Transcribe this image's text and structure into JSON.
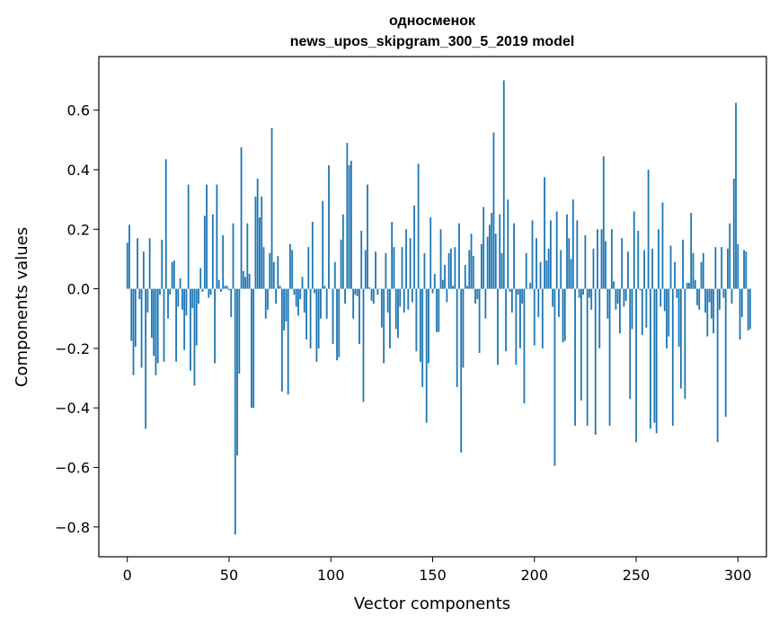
{
  "chart_data": {
    "type": "bar",
    "title": "односменок",
    "subtitle": "news_upos_skipgram_300_5_2019 model",
    "xlabel": "Vector components",
    "ylabel": "Components values",
    "xlim": [
      -14,
      314
    ],
    "ylim": [
      -0.9,
      0.78
    ],
    "xticks": [
      0,
      50,
      100,
      150,
      200,
      250,
      300
    ],
    "yticks": [
      -0.8,
      -0.6,
      -0.4,
      -0.2,
      0.0,
      0.2,
      0.4,
      0.6
    ],
    "ytick_labels": [
      "−0.8",
      "−0.6",
      "−0.4",
      "−0.2",
      "0.0",
      "0.2",
      "0.4",
      "0.6"
    ],
    "grid": false,
    "bar_color": "#1f77b4",
    "values": [
      0.155,
      0.215,
      -0.175,
      -0.29,
      -0.195,
      0.17,
      -0.035,
      -0.265,
      0.125,
      -0.47,
      -0.08,
      0.17,
      -0.165,
      -0.225,
      -0.29,
      -0.25,
      -0.02,
      0.165,
      -0.245,
      0.435,
      -0.1,
      -0.02,
      0.09,
      0.095,
      -0.245,
      -0.06,
      0.035,
      -0.07,
      -0.205,
      -0.09,
      0.35,
      -0.275,
      -0.065,
      -0.325,
      -0.19,
      -0.05,
      0.07,
      -0.01,
      0.245,
      0.35,
      -0.03,
      -0.02,
      0.25,
      -0.25,
      0.35,
      0.03,
      -0.01,
      0.18,
      0.01,
      0.01,
      -0.005,
      -0.095,
      0.22,
      -0.825,
      -0.56,
      -0.285,
      0.475,
      0.06,
      0.04,
      0.22,
      0.05,
      -0.4,
      -0.4,
      0.31,
      0.37,
      0.24,
      0.31,
      0.14,
      -0.1,
      -0.07,
      0.12,
      0.54,
      0.09,
      -0.05,
      0.11,
      0.01,
      -0.345,
      -0.14,
      -0.11,
      -0.355,
      0.15,
      0.13,
      -0.02,
      -0.06,
      -0.09,
      -0.035,
      0.04,
      -0.08,
      -0.17,
      0.14,
      -0.2,
      0.225,
      -0.015,
      -0.245,
      -0.2,
      -0.1,
      0.295,
      0.01,
      -0.1,
      0.415,
      0.0,
      -0.185,
      0.09,
      -0.24,
      -0.23,
      0.165,
      0.25,
      -0.05,
      0.49,
      0.415,
      0.43,
      -0.1,
      -0.02,
      -0.025,
      -0.185,
      0.195,
      -0.38,
      0.13,
      0.35,
      0.005,
      -0.04,
      -0.05,
      0.125,
      -0.02,
      0.0,
      -0.13,
      -0.25,
      0.12,
      -0.08,
      -0.2,
      0.225,
      0.14,
      -0.135,
      -0.165,
      -0.06,
      0.14,
      -0.08,
      0.2,
      -0.07,
      0.17,
      -0.045,
      0.28,
      -0.21,
      0.42,
      -0.245,
      -0.33,
      0.12,
      -0.45,
      -0.25,
      0.24,
      -0.015,
      0.05,
      -0.145,
      -0.145,
      0.2,
      0.03,
      0.08,
      -0.045,
      0.12,
      0.135,
      0.01,
      0.14,
      -0.33,
      0.22,
      -0.55,
      -0.265,
      0.08,
      0.01,
      0.13,
      0.185,
      0.11,
      -0.05,
      -0.035,
      -0.215,
      0.15,
      0.275,
      -0.1,
      0.175,
      0.215,
      0.255,
      0.525,
      0.185,
      -0.255,
      0.25,
      0.12,
      0.7,
      -0.21,
      0.3,
      -0.01,
      -0.08,
      0.22,
      -0.255,
      -0.02,
      -0.2,
      -0.05,
      -0.385,
      0.12,
      0.0,
      0.02,
      0.23,
      -0.19,
      0.17,
      -0.095,
      0.09,
      -0.2,
      0.375,
      0.095,
      0.135,
      0.23,
      -0.06,
      -0.595,
      0.26,
      -0.095,
      0.13,
      -0.18,
      -0.175,
      0.25,
      0.17,
      0.1,
      0.3,
      -0.46,
      0.23,
      -0.03,
      -0.375,
      -0.02,
      0.18,
      -0.46,
      -0.03,
      -0.07,
      0.135,
      -0.49,
      0.2,
      -0.2,
      0.2,
      0.445,
      0.16,
      -0.1,
      -0.46,
      0.2,
      0.025,
      -0.07,
      -0.05,
      -0.15,
      0.17,
      -0.06,
      -0.04,
      0.125,
      -0.37,
      -0.135,
      0.26,
      -0.515,
      0.195,
      -0.005,
      -0.155,
      0.13,
      -0.13,
      0.4,
      -0.47,
      0.135,
      -0.45,
      -0.485,
      0.2,
      -0.06,
      0.29,
      -0.075,
      -0.2,
      -0.16,
      0.145,
      -0.46,
      0.09,
      -0.03,
      -0.195,
      -0.335,
      0.165,
      -0.37,
      0.02,
      0.02,
      0.255,
      0.12,
      0.03,
      -0.055,
      -0.07,
      0.09,
      0.12,
      -0.08,
      -0.16,
      -0.045,
      -0.1,
      -0.15,
      0.14,
      -0.515,
      -0.07,
      0.14,
      -0.03,
      -0.43,
      0.135,
      0.22,
      -0.05,
      0.37,
      0.625,
      0.15,
      -0.17,
      -0.095,
      0.13,
      0.125,
      -0.14,
      -0.135
    ]
  }
}
